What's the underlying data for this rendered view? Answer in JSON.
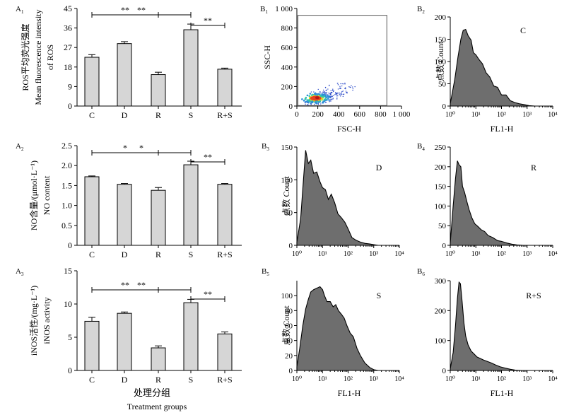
{
  "figure": {
    "xlabel_cn": "处理分组",
    "xlabel_en": "Treatment groups"
  },
  "chart_data": [
    {
      "id": "A1",
      "panel_label": "A",
      "panel_sub": "1",
      "type": "bar",
      "categories": [
        "C",
        "D",
        "R",
        "S",
        "R+S"
      ],
      "values": [
        22.5,
        28.8,
        14.5,
        35.2,
        17.0
      ],
      "errors": [
        1.2,
        0.9,
        1.1,
        2.6,
        0.5
      ],
      "ylabel_lines": [
        "ROS平均荧光强度",
        "Mean fluorescence intensity",
        "of ROS"
      ],
      "ylim": [
        0,
        45
      ],
      "yticks": [
        0,
        9,
        18,
        27,
        36,
        45
      ],
      "ytick_labels": [
        "0",
        "9",
        "18",
        "27",
        "36",
        "45"
      ],
      "significance": [
        {
          "from": "C",
          "to": "S",
          "label": "**"
        },
        {
          "from": "S",
          "to": "R+S",
          "label": "**"
        },
        {
          "from": "C",
          "to": "R",
          "label": "**"
        }
      ],
      "bar_color": "#d6d6d6"
    },
    {
      "id": "A2",
      "panel_label": "A",
      "panel_sub": "2",
      "type": "bar",
      "categories": [
        "C",
        "D",
        "R",
        "S",
        "R+S"
      ],
      "values": [
        1.72,
        1.53,
        1.38,
        2.02,
        1.53
      ],
      "errors": [
        0.02,
        0.02,
        0.07,
        0.09,
        0.02
      ],
      "ylabel_lines": [
        "NO含量/(μmol·L⁻¹)",
        "NO content"
      ],
      "ylim": [
        0,
        2.5
      ],
      "yticks": [
        0,
        0.5,
        1.0,
        1.5,
        2.0,
        2.5
      ],
      "ytick_labels": [
        "0",
        "0.5",
        "1.0",
        "1.5",
        "2.0",
        "2.5"
      ],
      "significance": [
        {
          "from": "C",
          "to": "S",
          "label": "*"
        },
        {
          "from": "S",
          "to": "R+S",
          "label": "**"
        },
        {
          "from": "C",
          "to": "R",
          "label": "*"
        }
      ],
      "bar_color": "#d6d6d6"
    },
    {
      "id": "A3",
      "panel_label": "A",
      "panel_sub": "3",
      "type": "bar",
      "categories": [
        "C",
        "D",
        "R",
        "S",
        "R+S"
      ],
      "values": [
        7.4,
        8.6,
        3.4,
        10.2,
        5.5
      ],
      "errors": [
        0.6,
        0.2,
        0.3,
        0.5,
        0.3
      ],
      "ylabel_lines": [
        "iNOS活性/(mg·L⁻¹)",
        "iNOS activity"
      ],
      "ylim": [
        0,
        15
      ],
      "yticks": [
        0,
        5,
        10,
        15
      ],
      "ytick_labels": [
        "0",
        "5",
        "10",
        "15"
      ],
      "significance": [
        {
          "from": "C",
          "to": "S",
          "label": "**"
        },
        {
          "from": "S",
          "to": "R+S",
          "label": "**"
        },
        {
          "from": "C",
          "to": "R",
          "label": "**"
        }
      ],
      "bar_color": "#d6d6d6"
    },
    {
      "id": "B1",
      "panel_label": "B",
      "panel_sub": "1",
      "type": "scatter",
      "xlabel": "FSC-H",
      "ylabel": "SSC-H",
      "xlim": [
        0,
        1000
      ],
      "ylim": [
        0,
        1000
      ],
      "xticks": [
        0,
        200,
        400,
        600,
        800,
        1000
      ],
      "xtick_labels": [
        "0",
        "200",
        "400",
        "600",
        "800",
        "1 000"
      ],
      "yticks": [
        0,
        200,
        400,
        600,
        800,
        1000
      ],
      "ytick_labels": [
        "0",
        "200",
        "400",
        "600",
        "800",
        "1 000"
      ],
      "gate": {
        "x": [
          10,
          860
        ],
        "y": [
          5,
          930
        ]
      },
      "cluster_center": {
        "x": 180,
        "y": 80
      }
    },
    {
      "id": "B2",
      "panel_label": "B",
      "panel_sub": "2",
      "type": "area",
      "label": "C",
      "xlabel": "FL1-H",
      "ylabel_cn": "点数",
      "ylabel_en": "Count",
      "xscale": "log",
      "xlim": [
        1,
        10000
      ],
      "ylim": [
        0,
        200
      ],
      "yticks": [
        0,
        50,
        100,
        150,
        200
      ],
      "xtick_labels": [
        "10⁰",
        "10¹",
        "10²",
        "10³",
        "10⁴"
      ],
      "x": [
        1,
        1.5,
        2,
        2.6,
        3.2,
        4,
        5,
        6.5,
        8,
        10,
        13,
        18,
        25,
        35,
        50,
        70,
        100,
        150,
        220,
        330,
        500,
        800,
        1200,
        2000
      ],
      "values": [
        5,
        60,
        110,
        150,
        170,
        172,
        158,
        148,
        120,
        115,
        105,
        95,
        75,
        65,
        45,
        42,
        25,
        25,
        12,
        8,
        5,
        3,
        1,
        0
      ]
    },
    {
      "id": "B3",
      "panel_label": "B",
      "panel_sub": "3",
      "type": "area",
      "label": "D",
      "xlabel": "",
      "ylabel_cn": "点数",
      "ylabel_en": "Count",
      "xscale": "log",
      "xlim": [
        1,
        10000
      ],
      "ylim": [
        0,
        150
      ],
      "yticks": [
        0,
        50,
        100,
        150
      ],
      "xtick_labels": [
        "10⁰",
        "10¹",
        "10²",
        "10³",
        "10⁴"
      ],
      "x": [
        1,
        1.4,
        1.8,
        2.2,
        2.8,
        3.5,
        4.5,
        6,
        8,
        10,
        13,
        17,
        22,
        30,
        40,
        55,
        75,
        100,
        140,
        200,
        300,
        450,
        700,
        1000,
        1500
      ],
      "values": [
        5,
        40,
        100,
        145,
        125,
        130,
        110,
        112,
        97,
        88,
        85,
        70,
        78,
        65,
        48,
        42,
        35,
        25,
        12,
        8,
        5,
        3,
        2,
        1,
        0
      ]
    },
    {
      "id": "B4",
      "panel_label": "B",
      "panel_sub": "4",
      "type": "area",
      "label": "R",
      "xlabel": "",
      "ylabel_cn": "点数",
      "ylabel_en": "Count",
      "xscale": "log",
      "xlim": [
        1,
        10000
      ],
      "ylim": [
        0,
        250
      ],
      "yticks": [
        0,
        50,
        100,
        150,
        200,
        250
      ],
      "xtick_labels": [
        "10⁰",
        "10¹",
        "10²",
        "10³",
        "10⁴"
      ],
      "x": [
        1,
        1.3,
        1.6,
        1.9,
        2.2,
        2.6,
        3,
        3.6,
        4.5,
        5.5,
        7,
        9,
        12,
        16,
        22,
        30,
        45,
        70,
        100,
        160,
        250,
        400,
        700
      ],
      "values": [
        5,
        100,
        170,
        215,
        205,
        200,
        150,
        135,
        110,
        90,
        70,
        55,
        48,
        40,
        35,
        25,
        20,
        12,
        10,
        6,
        3,
        1,
        0
      ]
    },
    {
      "id": "B5",
      "panel_label": "B",
      "panel_sub": "5",
      "type": "area",
      "label": "S",
      "xlabel": "FL1-H",
      "ylabel_cn": "点数",
      "ylabel_en": "Count",
      "xscale": "log",
      "xlim": [
        1,
        10000
      ],
      "ylim": [
        0,
        120
      ],
      "yticks": [
        0,
        20,
        40,
        60,
        80,
        100
      ],
      "xtick_labels": [
        "10⁰",
        "10¹",
        "10²",
        "10³",
        "10⁴"
      ],
      "x": [
        1,
        1.3,
        1.7,
        2.2,
        2.8,
        3.5,
        4.5,
        6,
        8,
        10,
        12,
        15,
        20,
        26,
        33,
        42,
        55,
        70,
        90,
        120,
        160,
        220,
        300,
        450,
        700,
        1000,
        1500
      ],
      "values": [
        5,
        30,
        60,
        82,
        95,
        105,
        108,
        110,
        112,
        108,
        100,
        92,
        92,
        85,
        88,
        80,
        75,
        70,
        60,
        50,
        45,
        30,
        20,
        10,
        4,
        1,
        0
      ]
    },
    {
      "id": "B6",
      "panel_label": "B",
      "panel_sub": "6",
      "type": "area",
      "label": "R+S",
      "xlabel": "FL1-H",
      "ylabel_cn": "点数",
      "ylabel_en": "Count",
      "xscale": "log",
      "xlim": [
        1,
        10000
      ],
      "ylim": [
        0,
        300
      ],
      "yticks": [
        0,
        100,
        200,
        300
      ],
      "xtick_labels": [
        "10⁰",
        "10¹",
        "10²",
        "10³",
        "10⁴"
      ],
      "x": [
        1,
        1.3,
        1.6,
        1.9,
        2.2,
        2.5,
        2.9,
        3.4,
        4,
        5,
        6.5,
        8.5,
        11,
        15,
        20,
        28,
        40,
        60,
        90,
        140,
        220,
        350,
        600
      ],
      "values": [
        5,
        60,
        150,
        240,
        295,
        290,
        230,
        160,
        115,
        85,
        65,
        55,
        45,
        40,
        35,
        30,
        25,
        18,
        12,
        8,
        4,
        1,
        0
      ]
    }
  ]
}
